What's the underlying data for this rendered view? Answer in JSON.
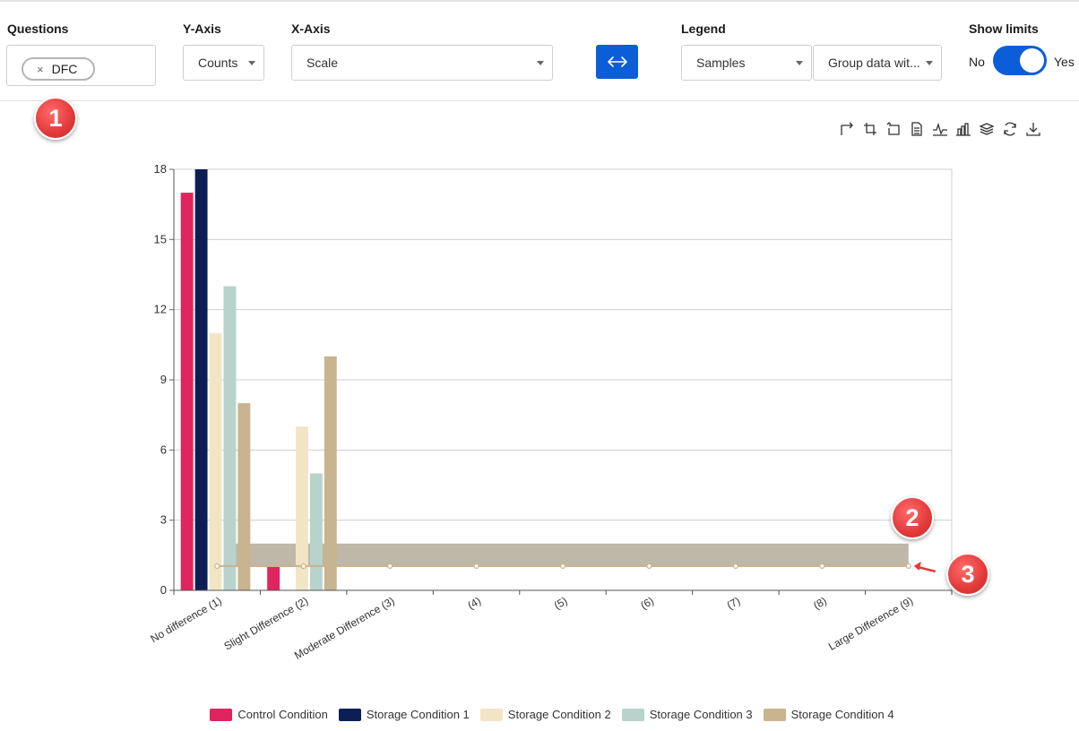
{
  "controls": {
    "questions": {
      "label": "Questions",
      "chip": "DFC",
      "chip_remove": "×"
    },
    "y_axis": {
      "label": "Y-Axis",
      "value": "Counts"
    },
    "x_axis": {
      "label": "X-Axis",
      "value": "Scale"
    },
    "swap_icon": "swap-horizontal-icon",
    "legend": {
      "label": "Legend",
      "value": "Samples",
      "group_value": "Group data wit..."
    },
    "show_limits": {
      "label": "Show limits",
      "off_label": "No",
      "on_label": "Yes",
      "on": true
    }
  },
  "annotations": [
    "1",
    "2",
    "3"
  ],
  "toolbar_icons": [
    "zoom-select-icon",
    "crop-icon",
    "rotate-icon",
    "document-icon",
    "line-chart-icon",
    "bar-chart-icon",
    "stack-icon",
    "refresh-icon",
    "download-icon"
  ],
  "chart_data": {
    "type": "bar",
    "categories": [
      "No difference (1)",
      "Slight Difference (2)",
      "Moderate Difference (3)",
      "(4)",
      "(5)",
      "(6)",
      "(7)",
      "(8)",
      "Large Difference (9)"
    ],
    "series": [
      {
        "name": "Control Condition",
        "color": "#e0245e",
        "values": [
          17,
          1,
          0,
          0,
          0,
          0,
          0,
          0,
          0
        ]
      },
      {
        "name": "Storage Condition 1",
        "color": "#0c1f54",
        "values": [
          18,
          0,
          0,
          0,
          0,
          0,
          0,
          0,
          0
        ]
      },
      {
        "name": "Storage Condition 2",
        "color": "#f2e5c6",
        "values": [
          11,
          7,
          0,
          0,
          0,
          0,
          0,
          0,
          0
        ]
      },
      {
        "name": "Storage Condition 3",
        "color": "#b8d3cb",
        "values": [
          13,
          5,
          0,
          0,
          0,
          0,
          0,
          0,
          0
        ]
      },
      {
        "name": "Storage Condition 4",
        "color": "#c8b48e",
        "values": [
          8,
          10,
          0,
          0,
          0,
          0,
          0,
          0,
          0
        ]
      }
    ],
    "limits": {
      "lower": 1,
      "upper": 2,
      "band_color": "#bcb3a2",
      "line_color": "#c8b48e"
    },
    "ylim": [
      0,
      18
    ],
    "yticks": [
      0,
      3,
      6,
      9,
      12,
      15,
      18
    ],
    "grid": true,
    "legend_position": "bottom"
  }
}
